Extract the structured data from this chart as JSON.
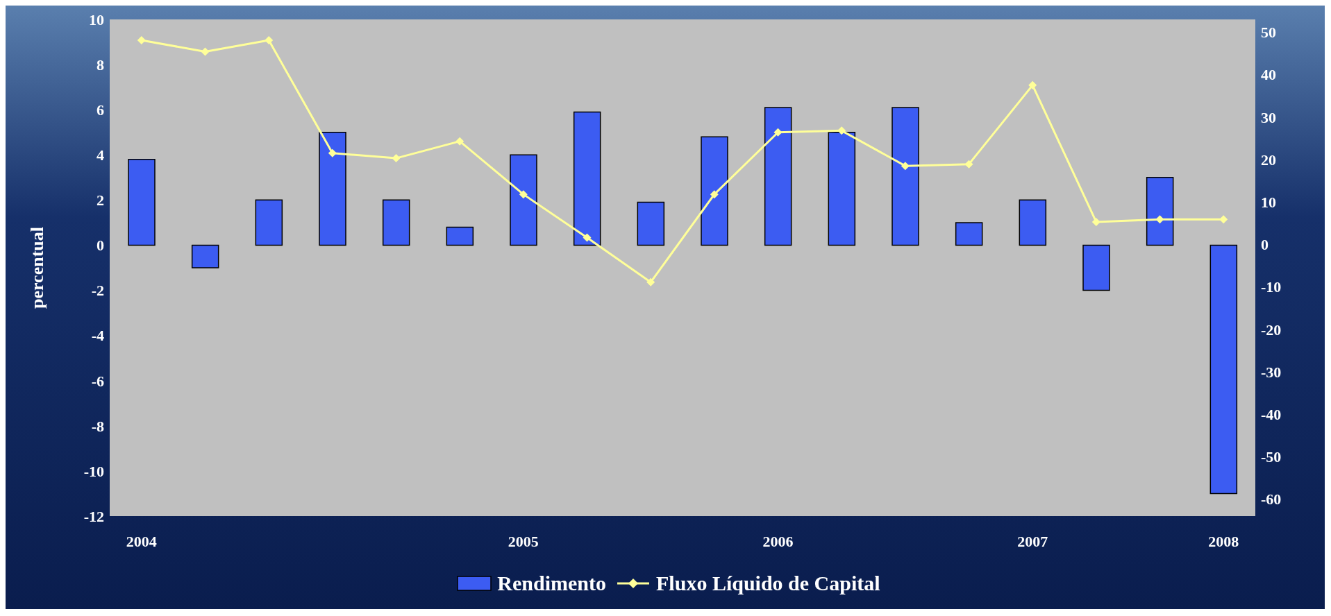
{
  "chart_data": {
    "type": "bar",
    "ylabel": "percentual",
    "categories": [
      "2004",
      null,
      null,
      null,
      null,
      null,
      "2005",
      null,
      null,
      null,
      "2006",
      null,
      null,
      null,
      "2007",
      null,
      null,
      "2008"
    ],
    "series": [
      {
        "name": "Rendimento",
        "color": "#3c5cf2",
        "values": [
          3.8,
          -1.0,
          2.0,
          5.0,
          2.0,
          0.8,
          4.0,
          5.9,
          1.9,
          4.8,
          6.1,
          5.0,
          6.1,
          1.0,
          2.0,
          -2.0,
          3.0,
          -11.0
        ]
      },
      {
        "name": "Fluxo Líquido de Capital",
        "type": "line",
        "axis": "y2",
        "color": "#ffff99",
        "values": [
          48.1,
          45.4,
          48.1,
          21.5,
          20.3,
          24.3,
          11.8,
          1.6,
          -8.9,
          11.8,
          26.4,
          26.8,
          18.5,
          18.9,
          37.5,
          5.3,
          5.9,
          5.9
        ]
      }
    ],
    "ylim": [
      -12,
      10
    ],
    "yticks": [
      -12,
      -10,
      -8,
      -6,
      -4,
      -2,
      0,
      2,
      4,
      6,
      8,
      10
    ],
    "y2lim": [
      -64,
      53
    ],
    "y2ticks": [
      -60,
      -50,
      -40,
      -30,
      -20,
      -10,
      0,
      10,
      20,
      30,
      40,
      50
    ],
    "marker": "diamond",
    "legend": "bottom"
  }
}
